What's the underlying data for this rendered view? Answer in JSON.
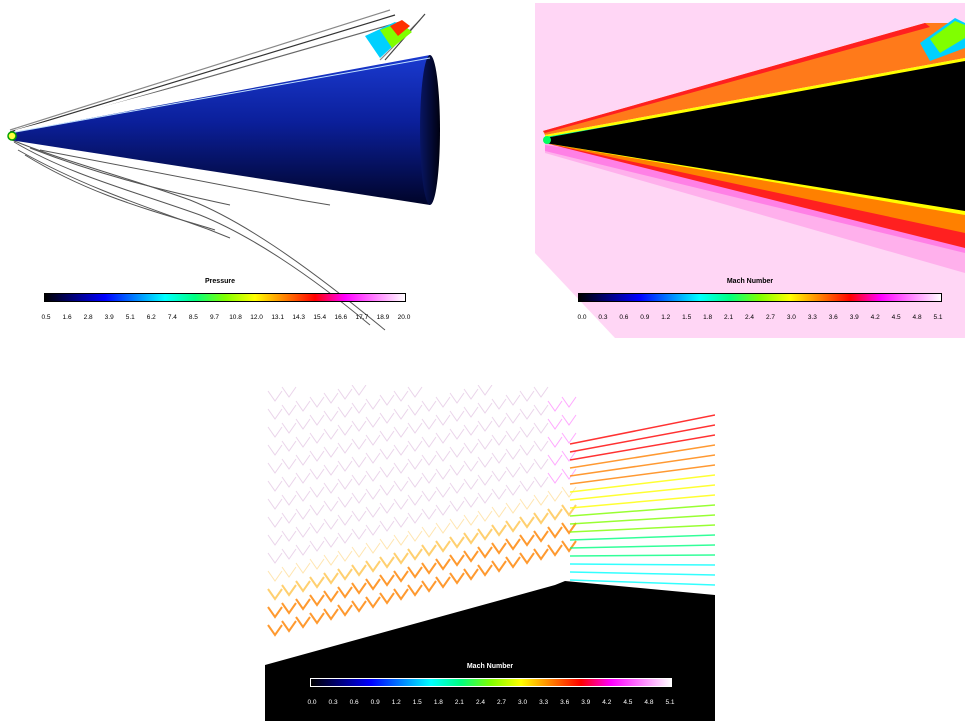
{
  "chart_data": [
    {
      "type": "heatmap",
      "colorbar": {
        "title": "Pressure",
        "ticks": [
          "0.5",
          "1.6",
          "2.8",
          "3.9",
          "5.1",
          "6.2",
          "7.4",
          "8.5",
          "9.7",
          "10.8",
          "12.0",
          "13.1",
          "14.3",
          "15.4",
          "16.6",
          "17.7",
          "18.9",
          "20.0"
        ],
        "range": [
          0.5,
          20.0
        ]
      }
    },
    {
      "type": "heatmap",
      "colorbar": {
        "title": "Mach Number",
        "ticks": [
          "0.0",
          "0.3",
          "0.6",
          "0.9",
          "1.2",
          "1.5",
          "1.8",
          "2.1",
          "2.4",
          "2.7",
          "3.0",
          "3.3",
          "3.6",
          "3.9",
          "4.2",
          "4.5",
          "4.8",
          "5.1"
        ],
        "range": [
          0.0,
          5.1
        ]
      }
    },
    {
      "type": "heatmap",
      "colorbar": {
        "title": "Mach Number",
        "ticks": [
          "0.0",
          "0.3",
          "0.6",
          "0.9",
          "1.2",
          "1.5",
          "1.8",
          "2.1",
          "2.4",
          "2.7",
          "3.0",
          "3.3",
          "3.6",
          "3.9",
          "4.2",
          "4.5",
          "4.8",
          "5.1"
        ],
        "range": [
          0.0,
          5.1
        ]
      }
    }
  ],
  "colors": {
    "rainbow": [
      "#000000",
      "#000080",
      "#0000ff",
      "#0080ff",
      "#00ffff",
      "#00ff80",
      "#80ff00",
      "#ffff00",
      "#ff8000",
      "#ff0000",
      "#ff00ff",
      "#ff80ff",
      "#ffffff"
    ],
    "cone_surface": "#0a1c7a",
    "freestream_mach": "#ffd6f5",
    "post_shock_mach": "#ff7a1a"
  }
}
